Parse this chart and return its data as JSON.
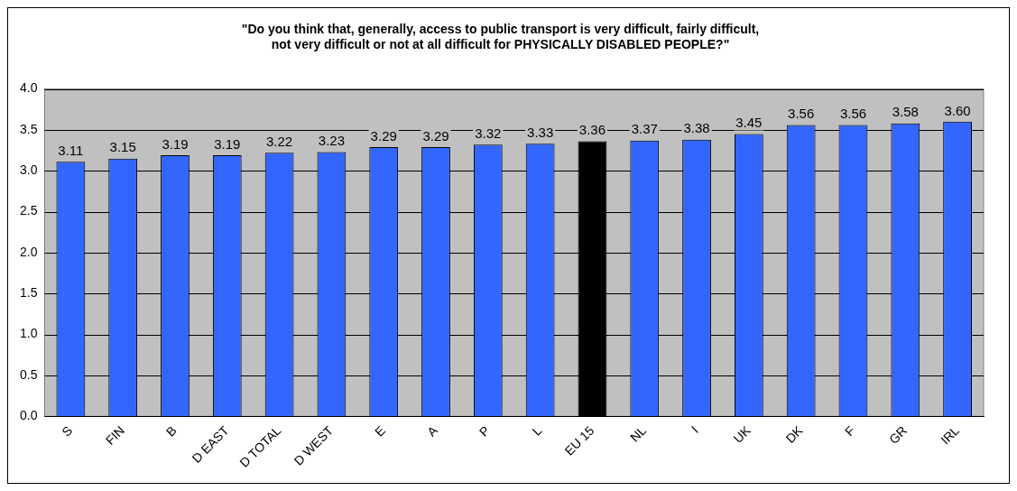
{
  "chart_data": {
    "type": "bar",
    "title": [
      "\"Do you think that, generally, access to public transport is very difficult, fairly difficult,",
      "not very difficult or not at all difficult for PHYSICALLY DISABLED PEOPLE?\""
    ],
    "categories": [
      "S",
      "FIN",
      "B",
      "D EAST",
      "D TOTAL",
      "D WEST",
      "E",
      "A",
      "P",
      "L",
      "EU 15",
      "NL",
      "I",
      "UK",
      "DK",
      "F",
      "GR",
      "IRL"
    ],
    "values": [
      3.11,
      3.15,
      3.19,
      3.19,
      3.22,
      3.23,
      3.29,
      3.29,
      3.32,
      3.33,
      3.36,
      3.37,
      3.38,
      3.45,
      3.56,
      3.56,
      3.58,
      3.6
    ],
    "value_labels": [
      "3.11",
      "3.15",
      "3.19",
      "3.19",
      "3.22",
      "3.23",
      "3.29",
      "3.29",
      "3.32",
      "3.33",
      "3.36",
      "3.37",
      "3.38",
      "3.45",
      "3.56",
      "3.56",
      "3.58",
      "3.60"
    ],
    "colors": [
      "#3366ff",
      "#3366ff",
      "#3366ff",
      "#3366ff",
      "#3366ff",
      "#3366ff",
      "#3366ff",
      "#3366ff",
      "#3366ff",
      "#3366ff",
      "#000000",
      "#3366ff",
      "#3366ff",
      "#3366ff",
      "#3366ff",
      "#3366ff",
      "#3366ff",
      "#3366ff"
    ],
    "ylim": [
      0,
      4
    ],
    "yticks": [
      {
        "value": 0,
        "label": "0.0"
      },
      {
        "value": 0.5,
        "label": "0.5"
      },
      {
        "value": 1,
        "label": "1.0"
      },
      {
        "value": 1.5,
        "label": "1.5"
      },
      {
        "value": 2,
        "label": "2.0"
      },
      {
        "value": 2.5,
        "label": "2.5"
      },
      {
        "value": 3,
        "label": "3.0"
      },
      {
        "value": 3.5,
        "label": "3.5"
      },
      {
        "value": 4,
        "label": "4.0"
      }
    ],
    "grid": "y",
    "legend": false
  }
}
